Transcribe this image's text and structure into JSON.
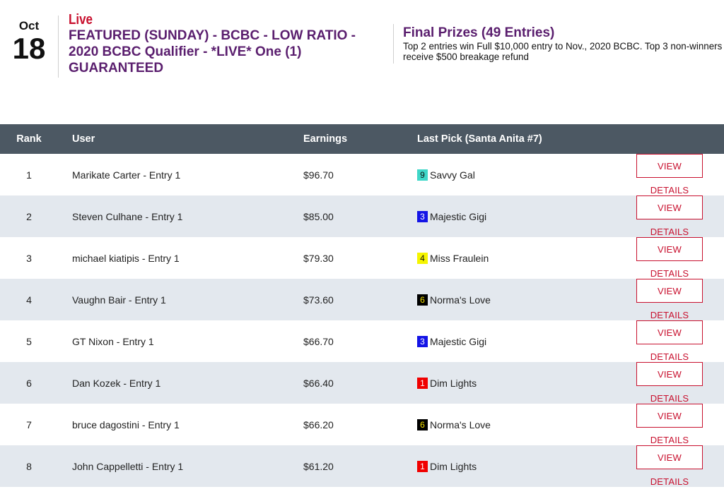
{
  "event": {
    "month": "Oct",
    "day": "18",
    "live_label": "Live",
    "title": "FEATURED (SUNDAY) - BCBC - LOW RATIO - 2020 BCBC Qualifier - *LIVE* One (1) GUARANTEED"
  },
  "prizes": {
    "title": "Final Prizes (49 Entries)",
    "description": "Top 2 entries win Full $10,000 entry to Nov., 2020 BCBC. Top 3 non-winners receive $500 breakage refund"
  },
  "table": {
    "headers": {
      "rank": "Rank",
      "user": "User",
      "earnings": "Earnings",
      "last_pick": "Last Pick (Santa Anita #7)"
    },
    "button_label": "VIEW DETAILS",
    "rows": [
      {
        "rank": "1",
        "user": "Marikate Carter - Entry 1",
        "earnings": "$96.70",
        "post": "9",
        "post_bg": "#3fd7c8",
        "post_fg": "#111111",
        "horse": "Savvy Gal"
      },
      {
        "rank": "2",
        "user": "Steven Culhane - Entry 1",
        "earnings": "$85.00",
        "post": "3",
        "post_bg": "#1414e6",
        "post_fg": "#ffffff",
        "horse": "Majestic Gigi"
      },
      {
        "rank": "3",
        "user": "michael kiatipis - Entry 1",
        "earnings": "$79.30",
        "post": "4",
        "post_bg": "#f5f500",
        "post_fg": "#111111",
        "horse": "Miss Fraulein"
      },
      {
        "rank": "4",
        "user": "Vaughn Bair - Entry 1",
        "earnings": "$73.60",
        "post": "6",
        "post_bg": "#000000",
        "post_fg": "#f5e200",
        "horse": "Norma's Love"
      },
      {
        "rank": "5",
        "user": "GT Nixon - Entry 1",
        "earnings": "$66.70",
        "post": "3",
        "post_bg": "#1414e6",
        "post_fg": "#ffffff",
        "horse": "Majestic Gigi"
      },
      {
        "rank": "6",
        "user": "Dan Kozek - Entry 1",
        "earnings": "$66.40",
        "post": "1",
        "post_bg": "#f00000",
        "post_fg": "#ffffff",
        "horse": "Dim Lights"
      },
      {
        "rank": "7",
        "user": "bruce dagostini - Entry 1",
        "earnings": "$66.20",
        "post": "6",
        "post_bg": "#000000",
        "post_fg": "#f5e200",
        "horse": "Norma's Love"
      },
      {
        "rank": "8",
        "user": "John Cappelletti - Entry 1",
        "earnings": "$61.20",
        "post": "1",
        "post_bg": "#f00000",
        "post_fg": "#ffffff",
        "horse": "Dim Lights"
      }
    ]
  }
}
